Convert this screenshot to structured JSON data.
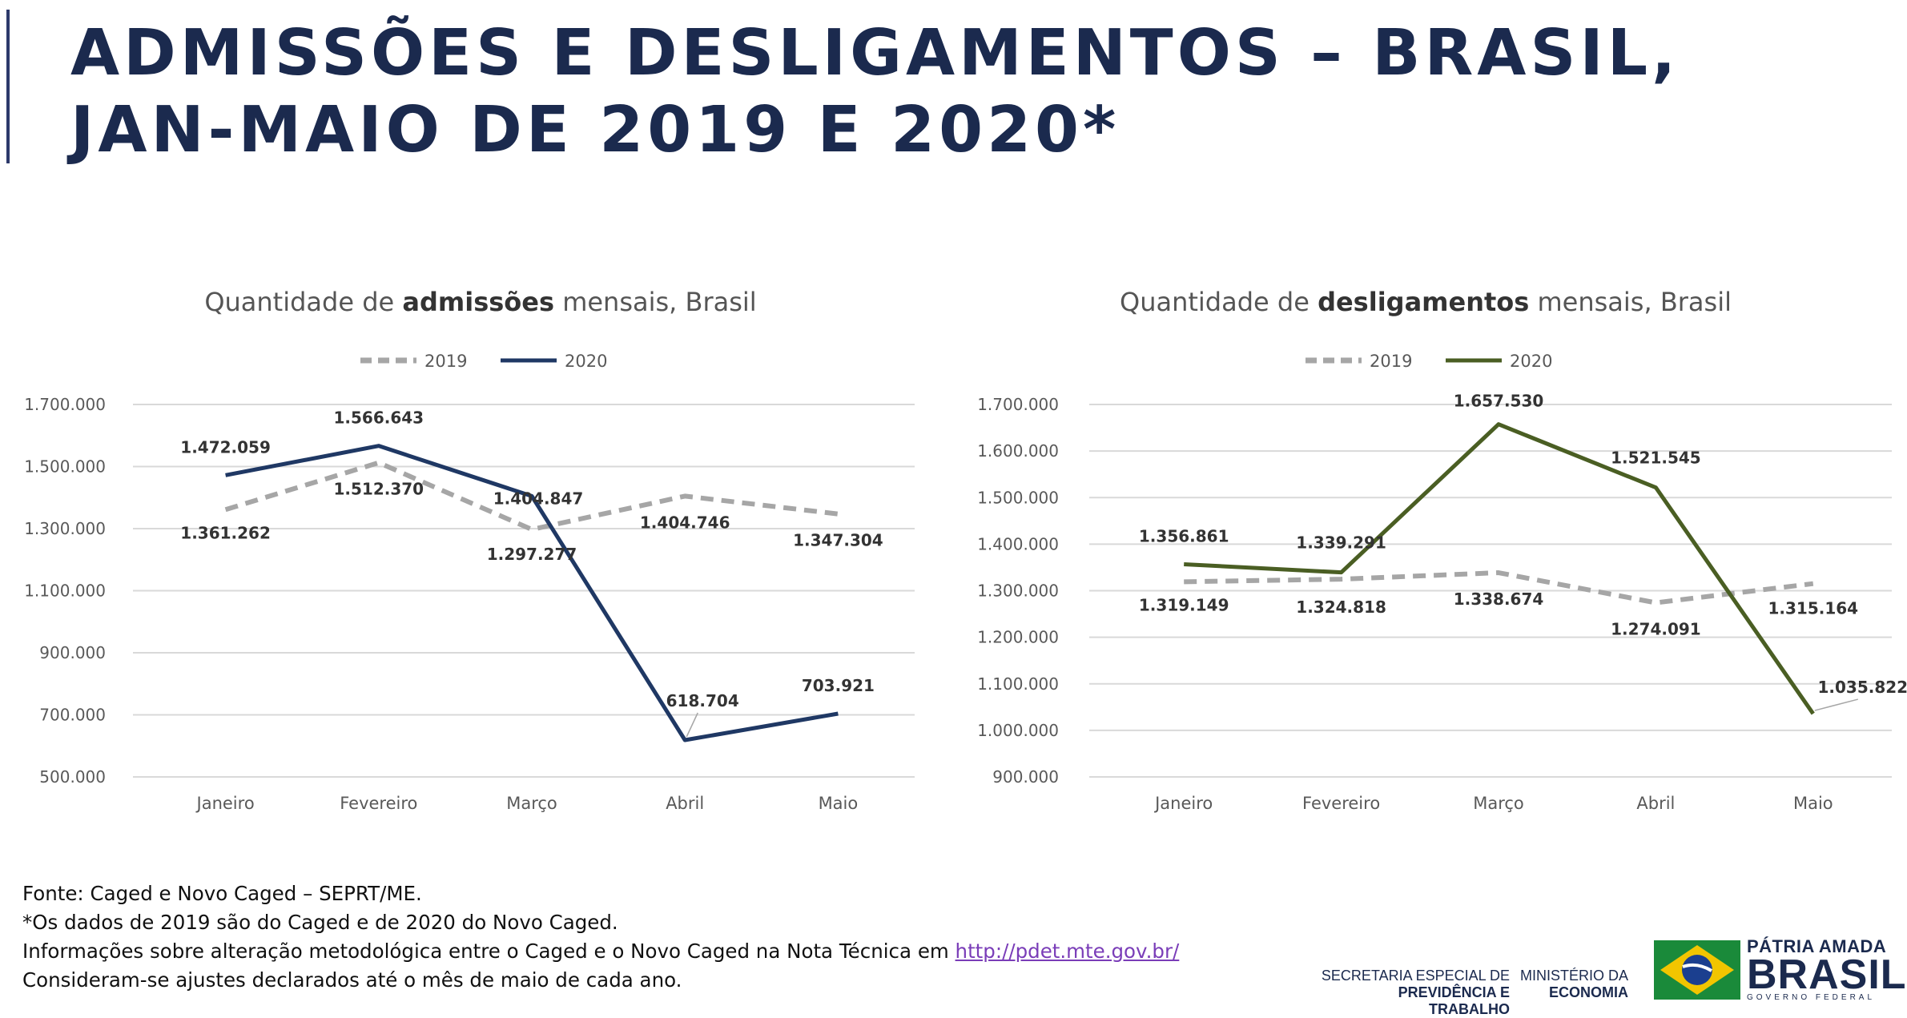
{
  "header": {
    "title_line1": "ADMISSÕES E DESLIGAMENTOS – BRASIL,",
    "title_line2": "JAN-MAIO DE 2019 E 2020*",
    "accent_color": "#2d3a6b"
  },
  "chart_data": [
    {
      "type": "line",
      "title_prefix": "Quantidade de ",
      "title_bold": "admissões",
      "title_suffix": " mensais, Brasil",
      "categories": [
        "Janeiro",
        "Fevereiro",
        "Março",
        "Abril",
        "Maio"
      ],
      "series": [
        {
          "name": "2019",
          "values": [
            1361262,
            1512370,
            1297277,
            1404746,
            1347304
          ],
          "labels": [
            "1.361.262",
            "1.512.370",
            "1.297.277",
            "1.404.746",
            "1.347.304"
          ],
          "color": "#a6a6a6",
          "dashed": true
        },
        {
          "name": "2020",
          "values": [
            1472059,
            1566643,
            1404847,
            618704,
            703921
          ],
          "labels": [
            "1.472.059",
            "1.566.643",
            "1.404.847",
            "618.704",
            "703.921"
          ],
          "color": "#1f3864",
          "dashed": false
        }
      ],
      "ylim": [
        500000,
        1700000
      ],
      "yticks": [
        500000,
        700000,
        900000,
        1100000,
        1300000,
        1500000,
        1700000
      ],
      "ytick_labels": [
        "500.000",
        "700.000",
        "900.000",
        "1.100.000",
        "1.300.000",
        "1.500.000",
        "1.700.000"
      ],
      "grid": true,
      "legend": "top-center"
    },
    {
      "type": "line",
      "title_prefix": "Quantidade de ",
      "title_bold": "desligamentos",
      "title_suffix": " mensais, Brasil",
      "categories": [
        "Janeiro",
        "Fevereiro",
        "Março",
        "Abril",
        "Maio"
      ],
      "series": [
        {
          "name": "2019",
          "values": [
            1319149,
            1324818,
            1338674,
            1274091,
            1315164
          ],
          "labels": [
            "1.319.149",
            "1.324.818",
            "1.338.674",
            "1.274.091",
            "1.315.164"
          ],
          "color": "#a6a6a6",
          "dashed": true
        },
        {
          "name": "2020",
          "values": [
            1356861,
            1339291,
            1657530,
            1521545,
            1035822
          ],
          "labels": [
            "1.356.861",
            "1.339.291",
            "1.657.530",
            "1.521.545",
            "1.035.822"
          ],
          "color": "#4a5e23",
          "dashed": false
        }
      ],
      "ylim": [
        900000,
        1700000
      ],
      "yticks": [
        900000,
        1000000,
        1100000,
        1200000,
        1300000,
        1400000,
        1500000,
        1600000,
        1700000
      ],
      "ytick_labels": [
        "900.000",
        "1.000.000",
        "1.100.000",
        "1.200.000",
        "1.300.000",
        "1.400.000",
        "1.500.000",
        "1.600.000",
        "1.700.000"
      ],
      "grid": true,
      "legend": "top-center"
    }
  ],
  "footer": {
    "source": "Fonte: Caged e Novo Caged – SEPRT/ME.",
    "note": "*Os dados de 2019 são do Caged e de 2020 do Novo Caged.",
    "info_prefix": "Informações sobre alteração metodológica entre o Caged e o Novo Caged na Nota Técnica em ",
    "info_link": "http://pdet.mte.gov.br/",
    "adjust": "Consideram-se ajustes declarados até o mês de maio de cada ano."
  },
  "logos": {
    "seprt_line1": "SECRETARIA ESPECIAL DE",
    "seprt_line2": "PREVIDÊNCIA E TRABALHO",
    "me_line1": "MINISTÉRIO DA",
    "me_line2": "ECONOMIA",
    "patria_line1": "PÁTRIA AMADA",
    "patria_line2": "BRASIL",
    "patria_line3": "GOVERNO FEDERAL"
  }
}
